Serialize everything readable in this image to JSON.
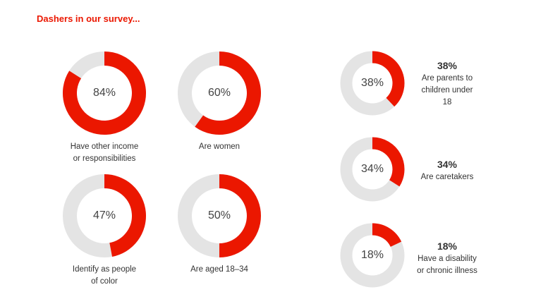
{
  "title": "Dashers in our survey...",
  "colors": {
    "accent": "#eb1700",
    "track": "#e4e4e4"
  },
  "chart_data": {
    "type": "pie",
    "title": "Dashers in our survey...",
    "items": [
      {
        "value": 84,
        "label": "84%",
        "caption": [
          "Have other income",
          "or responsibilities"
        ]
      },
      {
        "value": 60,
        "label": "60%",
        "caption": [
          "Are women"
        ]
      },
      {
        "value": 47,
        "label": "47%",
        "caption": [
          "Identify as people",
          "of color"
        ]
      },
      {
        "value": 50,
        "label": "50%",
        "caption": [
          "Are aged 18–34"
        ]
      },
      {
        "value": 38,
        "label": "38%",
        "side_value": "38%",
        "caption": [
          "Are parents to",
          "children under",
          "18"
        ]
      },
      {
        "value": 34,
        "label": "34%",
        "side_value": "34%",
        "caption": [
          "Are caretakers"
        ]
      },
      {
        "value": 18,
        "label": "18%",
        "side_value": "18%",
        "caption": [
          "Have a disability",
          "or chronic illness"
        ]
      }
    ]
  }
}
